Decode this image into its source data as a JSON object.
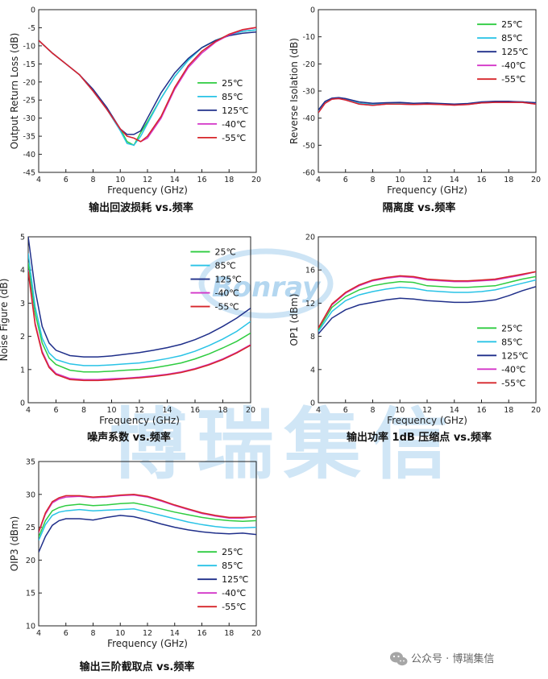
{
  "page": {
    "watermark": {
      "logo": "Bonray",
      "text": "博瑞集信"
    },
    "footer": {
      "label": "公众号 · 博瑞集信"
    }
  },
  "legend_entries": [
    "25℃",
    "85℃",
    "125℃",
    "-40℃",
    "-55℃"
  ],
  "series_colors": [
    "#2ecc40",
    "#29c3e6",
    "#1f2f8a",
    "#d335c8",
    "#d6262a"
  ],
  "chart_data": [
    {
      "type": "line",
      "caption": "输出回波损耗 vs.频率",
      "xlabel": "Frequency (GHz)",
      "ylabel": "Output Return Loss (dB)",
      "xlim": [
        4,
        20
      ],
      "ylim": [
        -45,
        0
      ],
      "xticks": [
        4,
        6,
        8,
        10,
        12,
        14,
        16,
        18,
        20
      ],
      "yticks": [
        0,
        -5,
        -10,
        -15,
        -20,
        -25,
        -30,
        -35,
        -40,
        -45
      ],
      "legend_position": "middle-right",
      "x": [
        4,
        5,
        6,
        7,
        8,
        9,
        10,
        10.5,
        11,
        11.5,
        12,
        13,
        14,
        15,
        16,
        17,
        18,
        19,
        20
      ],
      "series": [
        {
          "name": "25℃",
          "values": [
            -8.5,
            -12,
            -15,
            -18,
            -22.5,
            -27.5,
            -33,
            -36.5,
            -37.5,
            -34,
            -31,
            -24.5,
            -18.5,
            -14,
            -10.5,
            -8.5,
            -7,
            -6,
            -5.6
          ]
        },
        {
          "name": "85℃",
          "values": [
            -8.5,
            -12,
            -15,
            -18,
            -22.5,
            -27.5,
            -33.5,
            -37,
            -37.5,
            -35,
            -31.5,
            -24.5,
            -18.5,
            -14,
            -10.5,
            -8.5,
            -7,
            -6,
            -5.6
          ]
        },
        {
          "name": "125℃",
          "values": [
            -8.5,
            -12,
            -15,
            -18,
            -22,
            -27,
            -33,
            -34.5,
            -34.5,
            -33.5,
            -30,
            -23,
            -17.5,
            -13.5,
            -10.5,
            -8.5,
            -7.2,
            -6.5,
            -6.2
          ]
        },
        {
          "name": "-40℃",
          "values": [
            -8.5,
            -12,
            -15,
            -18,
            -22.5,
            -27.5,
            -33,
            -35,
            -35.5,
            -36.5,
            -35.5,
            -30,
            -22,
            -16,
            -12,
            -9,
            -7,
            -5.6,
            -5
          ]
        },
        {
          "name": "-55℃",
          "values": [
            -8.5,
            -12,
            -15,
            -18,
            -22.5,
            -27.5,
            -33,
            -35,
            -35.5,
            -36.5,
            -35,
            -29.5,
            -21.5,
            -15.5,
            -11.5,
            -8.8,
            -6.8,
            -5.5,
            -4.9
          ]
        }
      ]
    },
    {
      "type": "line",
      "caption": "隔离度 vs.频率",
      "xlabel": "Frequency (GHz)",
      "ylabel": "Reverse Isolation (dB)",
      "xlim": [
        4,
        20
      ],
      "ylim": [
        -60,
        0
      ],
      "xticks": [
        4,
        6,
        8,
        10,
        12,
        14,
        16,
        18,
        20
      ],
      "yticks": [
        0,
        -10,
        -20,
        -30,
        -40,
        -50,
        -60
      ],
      "legend_position": "top-right",
      "x": [
        4,
        4.5,
        5,
        5.5,
        6,
        7,
        8,
        9,
        10,
        11,
        12,
        13,
        14,
        15,
        16,
        17,
        18,
        19,
        20
      ],
      "series": [
        {
          "name": "25℃",
          "values": [
            -37.5,
            -34,
            -32.8,
            -32.5,
            -33,
            -34.5,
            -35,
            -34.5,
            -34.5,
            -34.8,
            -34.5,
            -34.8,
            -35,
            -34.8,
            -34.2,
            -34,
            -34,
            -34,
            -34.5
          ]
        },
        {
          "name": "85℃",
          "values": [
            -37.5,
            -34,
            -32.8,
            -32.5,
            -33,
            -34.5,
            -35,
            -34.5,
            -34.5,
            -34.8,
            -34.5,
            -34.8,
            -35,
            -34.8,
            -34.2,
            -34,
            -34,
            -34,
            -34.5
          ]
        },
        {
          "name": "125℃",
          "values": [
            -37,
            -33.8,
            -32.6,
            -32.4,
            -32.8,
            -34,
            -34.5,
            -34.3,
            -34.2,
            -34.5,
            -34.4,
            -34.6,
            -34.8,
            -34.6,
            -34,
            -33.8,
            -33.8,
            -34,
            -34.3
          ]
        },
        {
          "name": "-40℃",
          "values": [
            -38,
            -34.5,
            -33,
            -32.8,
            -33.3,
            -34.8,
            -35.3,
            -34.8,
            -34.8,
            -35,
            -34.8,
            -35,
            -35.2,
            -35,
            -34.4,
            -34.2,
            -34.2,
            -34.2,
            -34.8
          ]
        },
        {
          "name": "-55℃",
          "values": [
            -38,
            -34.5,
            -33,
            -32.8,
            -33.3,
            -34.8,
            -35.3,
            -34.8,
            -34.8,
            -35,
            -34.8,
            -35,
            -35.2,
            -35,
            -34.4,
            -34.2,
            -34.2,
            -34.2,
            -34.8
          ]
        }
      ]
    },
    {
      "type": "line",
      "caption": "噪声系数 vs.频率",
      "xlabel": "Frequency (GHz)",
      "ylabel": "Noise Figure (dB)",
      "xlim": [
        4,
        20
      ],
      "ylim": [
        0,
        5
      ],
      "xticks": [
        4,
        6,
        8,
        10,
        12,
        14,
        16,
        18,
        20
      ],
      "yticks": [
        0,
        1,
        2,
        3,
        4,
        5
      ],
      "legend_position": "top-right",
      "x": [
        4,
        4.5,
        5,
        5.5,
        6,
        7,
        8,
        9,
        10,
        11,
        12,
        13,
        14,
        15,
        16,
        17,
        18,
        19,
        20
      ],
      "series": [
        {
          "name": "25℃",
          "values": [
            4.2,
            2.7,
            1.8,
            1.35,
            1.15,
            0.98,
            0.93,
            0.93,
            0.95,
            0.98,
            1.0,
            1.05,
            1.12,
            1.2,
            1.32,
            1.47,
            1.65,
            1.85,
            2.1
          ]
        },
        {
          "name": "85℃",
          "values": [
            4.5,
            2.9,
            1.95,
            1.5,
            1.3,
            1.17,
            1.12,
            1.12,
            1.14,
            1.17,
            1.2,
            1.26,
            1.33,
            1.42,
            1.55,
            1.72,
            1.92,
            2.15,
            2.45
          ]
        },
        {
          "name": "125℃",
          "values": [
            5.0,
            3.4,
            2.3,
            1.8,
            1.58,
            1.42,
            1.38,
            1.38,
            1.41,
            1.46,
            1.51,
            1.58,
            1.66,
            1.76,
            1.9,
            2.08,
            2.3,
            2.55,
            2.85
          ]
        },
        {
          "name": "-40℃",
          "values": [
            4.0,
            2.4,
            1.55,
            1.1,
            0.88,
            0.73,
            0.7,
            0.7,
            0.72,
            0.74,
            0.77,
            0.81,
            0.86,
            0.93,
            1.03,
            1.16,
            1.32,
            1.52,
            1.75
          ]
        },
        {
          "name": "-55℃",
          "values": [
            3.95,
            2.35,
            1.5,
            1.06,
            0.85,
            0.7,
            0.67,
            0.67,
            0.69,
            0.72,
            0.75,
            0.79,
            0.84,
            0.91,
            1.01,
            1.14,
            1.3,
            1.5,
            1.73
          ]
        }
      ]
    },
    {
      "type": "line",
      "caption": "输出功率 1dB 压缩点 vs.频率",
      "xlabel": "Frequency (GHz)",
      "ylabel": "OP1 (dBm)",
      "xlim": [
        4,
        20
      ],
      "ylim": [
        0,
        20
      ],
      "xticks": [
        4,
        6,
        8,
        10,
        12,
        14,
        16,
        18,
        20
      ],
      "yticks": [
        0,
        4,
        8,
        12,
        16,
        20
      ],
      "legend_position": "bottom-right",
      "x": [
        4,
        5,
        6,
        7,
        8,
        9,
        10,
        11,
        12,
        13,
        14,
        15,
        16,
        17,
        18,
        19,
        20
      ],
      "series": [
        {
          "name": "25℃",
          "values": [
            8.8,
            11.5,
            12.8,
            13.6,
            14.1,
            14.4,
            14.6,
            14.5,
            14.1,
            14.0,
            13.9,
            13.9,
            14.0,
            14.1,
            14.5,
            14.9,
            15.2
          ]
        },
        {
          "name": "85℃",
          "values": [
            8.6,
            11.0,
            12.3,
            13.0,
            13.4,
            13.7,
            13.9,
            13.8,
            13.5,
            13.4,
            13.3,
            13.3,
            13.4,
            13.6,
            14.0,
            14.4,
            14.8
          ]
        },
        {
          "name": "125℃",
          "values": [
            8.3,
            10.2,
            11.2,
            11.8,
            12.1,
            12.4,
            12.6,
            12.5,
            12.3,
            12.2,
            12.1,
            12.1,
            12.2,
            12.4,
            12.9,
            13.5,
            14.0
          ]
        },
        {
          "name": "-40℃",
          "values": [
            9.0,
            11.8,
            13.2,
            14.1,
            14.7,
            15.0,
            15.2,
            15.1,
            14.8,
            14.7,
            14.6,
            14.6,
            14.7,
            14.8,
            15.1,
            15.4,
            15.8
          ]
        },
        {
          "name": "-55℃",
          "values": [
            9.0,
            11.9,
            13.3,
            14.2,
            14.8,
            15.1,
            15.3,
            15.2,
            14.9,
            14.8,
            14.7,
            14.7,
            14.8,
            14.9,
            15.2,
            15.5,
            15.8
          ]
        }
      ]
    },
    {
      "type": "line",
      "caption": "输出三阶截取点 vs.频率",
      "xlabel": "Frequency (GHz)",
      "ylabel": "OIP3 (dBm)",
      "xlim": [
        4,
        20
      ],
      "ylim": [
        10,
        35
      ],
      "xticks": [
        4,
        6,
        8,
        10,
        12,
        14,
        16,
        18,
        20
      ],
      "yticks": [
        10,
        15,
        20,
        25,
        30,
        35
      ],
      "legend_position": "bottom-right",
      "x": [
        4,
        4.5,
        5,
        5.5,
        6,
        7,
        8,
        9,
        10,
        11,
        12,
        13,
        14,
        15,
        16,
        17,
        18,
        19,
        20
      ],
      "series": [
        {
          "name": "25℃",
          "values": [
            23.5,
            26,
            27.5,
            28,
            28.3,
            28.5,
            28.3,
            28.4,
            28.6,
            28.7,
            28.3,
            27.8,
            27.3,
            26.9,
            26.5,
            26.2,
            26.0,
            25.9,
            26.0
          ]
        },
        {
          "name": "85℃",
          "values": [
            23.0,
            25.4,
            26.8,
            27.3,
            27.5,
            27.7,
            27.5,
            27.6,
            27.7,
            27.8,
            27.3,
            26.8,
            26.3,
            25.8,
            25.4,
            25.1,
            24.9,
            24.9,
            25.0
          ]
        },
        {
          "name": "125℃",
          "values": [
            21.2,
            23.6,
            25.3,
            26.0,
            26.3,
            26.3,
            26.1,
            26.5,
            26.8,
            26.6,
            26.1,
            25.5,
            25.0,
            24.6,
            24.3,
            24.1,
            24.0,
            24.1,
            23.9
          ]
        },
        {
          "name": "-40℃",
          "values": [
            24.2,
            27.0,
            28.7,
            29.3,
            29.6,
            29.7,
            29.5,
            29.6,
            29.8,
            29.9,
            29.6,
            29.0,
            28.3,
            27.7,
            27.1,
            26.7,
            26.4,
            26.4,
            26.6
          ]
        },
        {
          "name": "-55℃",
          "values": [
            24.3,
            27.2,
            28.9,
            29.5,
            29.8,
            29.8,
            29.6,
            29.7,
            29.9,
            30.0,
            29.7,
            29.1,
            28.4,
            27.8,
            27.2,
            26.8,
            26.5,
            26.5,
            26.6
          ]
        }
      ]
    }
  ]
}
